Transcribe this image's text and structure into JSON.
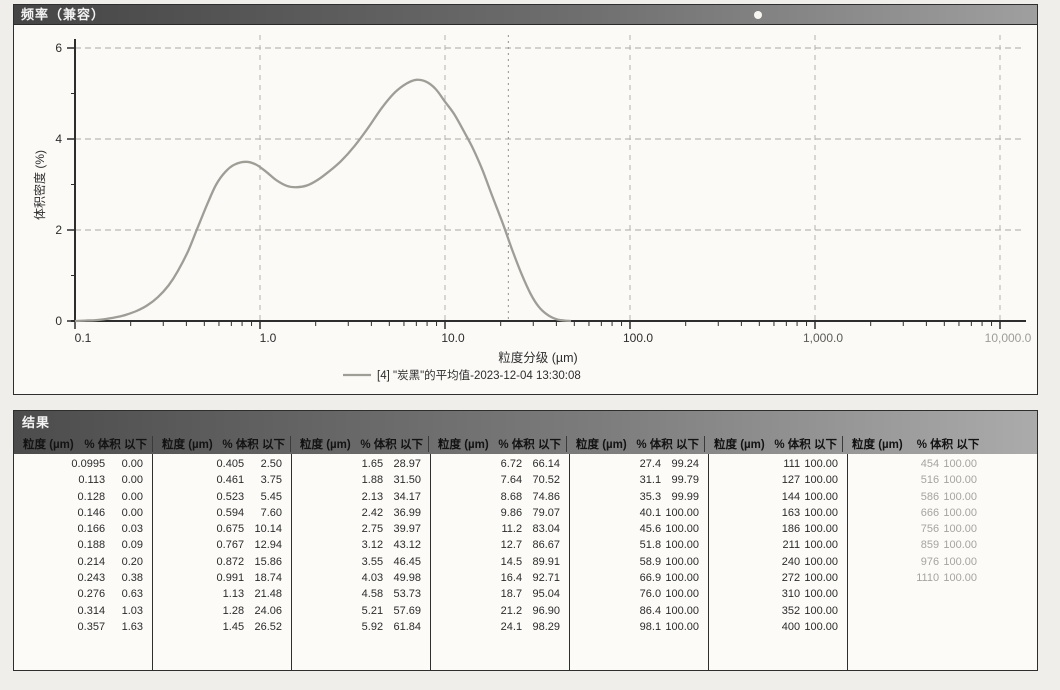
{
  "chart_window": {
    "title": "频率（兼容）"
  },
  "chart_data": {
    "type": "line",
    "title": "频率（兼容）",
    "xlabel": "粒度分级 (µm)",
    "ylabel": "体积密度 (%)",
    "x_scale": "log",
    "xlim": [
      0.1,
      10000
    ],
    "ylim": [
      0,
      6
    ],
    "x_tick_labels": [
      "0.1",
      "1.0",
      "10.0",
      "100.0",
      "1,000.0",
      "10,000.0"
    ],
    "x_tick_values": [
      0.1,
      1,
      10,
      100,
      1000,
      10000
    ],
    "y_tick_values": [
      0,
      2,
      4,
      6
    ],
    "grid": "dashed",
    "legend_position": "bottom",
    "marker_line_x": 22,
    "series": [
      {
        "name": "[4] \"炭黑\"的平均值-2023-12-04 13:30:08",
        "color": "#9e9e97",
        "points": [
          [
            0.1,
            0
          ],
          [
            0.115,
            0.01
          ],
          [
            0.13,
            0.02
          ],
          [
            0.15,
            0.05
          ],
          [
            0.17,
            0.09
          ],
          [
            0.19,
            0.14
          ],
          [
            0.215,
            0.22
          ],
          [
            0.245,
            0.34
          ],
          [
            0.28,
            0.52
          ],
          [
            0.32,
            0.78
          ],
          [
            0.36,
            1.1
          ],
          [
            0.41,
            1.55
          ],
          [
            0.46,
            2.05
          ],
          [
            0.52,
            2.58
          ],
          [
            0.58,
            3.0
          ],
          [
            0.65,
            3.28
          ],
          [
            0.73,
            3.44
          ],
          [
            0.84,
            3.5
          ],
          [
            0.95,
            3.44
          ],
          [
            1.08,
            3.28
          ],
          [
            1.22,
            3.1
          ],
          [
            1.4,
            2.97
          ],
          [
            1.58,
            2.94
          ],
          [
            1.8,
            2.98
          ],
          [
            2.05,
            3.1
          ],
          [
            2.35,
            3.28
          ],
          [
            2.75,
            3.52
          ],
          [
            3.25,
            3.85
          ],
          [
            3.85,
            4.25
          ],
          [
            4.55,
            4.68
          ],
          [
            5.35,
            5.02
          ],
          [
            6.2,
            5.22
          ],
          [
            7,
            5.3
          ],
          [
            7.9,
            5.26
          ],
          [
            8.9,
            5.1
          ],
          [
            10,
            4.82
          ],
          [
            11.2,
            4.55
          ],
          [
            12.6,
            4.18
          ],
          [
            14.2,
            3.78
          ],
          [
            16,
            3.3
          ],
          [
            18,
            2.75
          ],
          [
            20.5,
            2.15
          ],
          [
            23,
            1.58
          ],
          [
            26,
            1.02
          ],
          [
            29,
            0.6
          ],
          [
            32,
            0.32
          ],
          [
            36,
            0.13
          ],
          [
            40,
            0.04
          ],
          [
            44,
            0.01
          ],
          [
            48,
            0
          ]
        ]
      }
    ]
  },
  "results": {
    "title": "结果",
    "col_headers": {
      "size": "粒度 (µm)",
      "pct": "% 体积 以下"
    },
    "faded_group_index": 6,
    "groups": [
      {
        "rows": [
          [
            "0.0995",
            "0.00"
          ],
          [
            "0.113",
            "0.00"
          ],
          [
            "0.128",
            "0.00"
          ],
          [
            "0.146",
            "0.00"
          ],
          [
            "0.166",
            "0.03"
          ],
          [
            "0.188",
            "0.09"
          ],
          [
            "0.214",
            "0.20"
          ],
          [
            "0.243",
            "0.38"
          ],
          [
            "0.276",
            "0.63"
          ],
          [
            "0.314",
            "1.03"
          ],
          [
            "0.357",
            "1.63"
          ]
        ]
      },
      {
        "rows": [
          [
            "0.405",
            "2.50"
          ],
          [
            "0.461",
            "3.75"
          ],
          [
            "0.523",
            "5.45"
          ],
          [
            "0.594",
            "7.60"
          ],
          [
            "0.675",
            "10.14"
          ],
          [
            "0.767",
            "12.94"
          ],
          [
            "0.872",
            "15.86"
          ],
          [
            "0.991",
            "18.74"
          ],
          [
            "1.13",
            "21.48"
          ],
          [
            "1.28",
            "24.06"
          ],
          [
            "1.45",
            "26.52"
          ]
        ]
      },
      {
        "rows": [
          [
            "1.65",
            "28.97"
          ],
          [
            "1.88",
            "31.50"
          ],
          [
            "2.13",
            "34.17"
          ],
          [
            "2.42",
            "36.99"
          ],
          [
            "2.75",
            "39.97"
          ],
          [
            "3.12",
            "43.12"
          ],
          [
            "3.55",
            "46.45"
          ],
          [
            "4.03",
            "49.98"
          ],
          [
            "4.58",
            "53.73"
          ],
          [
            "5.21",
            "57.69"
          ],
          [
            "5.92",
            "61.84"
          ]
        ]
      },
      {
        "rows": [
          [
            "6.72",
            "66.14"
          ],
          [
            "7.64",
            "70.52"
          ],
          [
            "8.68",
            "74.86"
          ],
          [
            "9.86",
            "79.07"
          ],
          [
            "11.2",
            "83.04"
          ],
          [
            "12.7",
            "86.67"
          ],
          [
            "14.5",
            "89.91"
          ],
          [
            "16.4",
            "92.71"
          ],
          [
            "18.7",
            "95.04"
          ],
          [
            "21.2",
            "96.90"
          ],
          [
            "24.1",
            "98.29"
          ]
        ]
      },
      {
        "rows": [
          [
            "27.4",
            "99.24"
          ],
          [
            "31.1",
            "99.79"
          ],
          [
            "35.3",
            "99.99"
          ],
          [
            "40.1",
            "100.00"
          ],
          [
            "45.6",
            "100.00"
          ],
          [
            "51.8",
            "100.00"
          ],
          [
            "58.9",
            "100.00"
          ],
          [
            "66.9",
            "100.00"
          ],
          [
            "76.0",
            "100.00"
          ],
          [
            "86.4",
            "100.00"
          ],
          [
            "98.1",
            "100.00"
          ]
        ]
      },
      {
        "rows": [
          [
            "111",
            "100.00"
          ],
          [
            "127",
            "100.00"
          ],
          [
            "144",
            "100.00"
          ],
          [
            "163",
            "100.00"
          ],
          [
            "186",
            "100.00"
          ],
          [
            "211",
            "100.00"
          ],
          [
            "240",
            "100.00"
          ],
          [
            "272",
            "100.00"
          ],
          [
            "310",
            "100.00"
          ],
          [
            "352",
            "100.00"
          ],
          [
            "400",
            "100.00"
          ]
        ]
      },
      {
        "rows": [
          [
            "454",
            "100.00"
          ],
          [
            "516",
            "100.00"
          ],
          [
            "586",
            "100.00"
          ],
          [
            "666",
            "100.00"
          ],
          [
            "756",
            "100.00"
          ],
          [
            "859",
            "100.00"
          ],
          [
            "976",
            "100.00"
          ],
          [
            "1110",
            "100.00"
          ]
        ]
      }
    ]
  },
  "colors": {
    "titlebar_dark": "#454545",
    "titlebar_light": "#9f9f9f",
    "curve": "#9e9e97",
    "grid": "#a8a8a4",
    "axis": "#2d2d2d",
    "faded_text": "#a5a4a1"
  }
}
